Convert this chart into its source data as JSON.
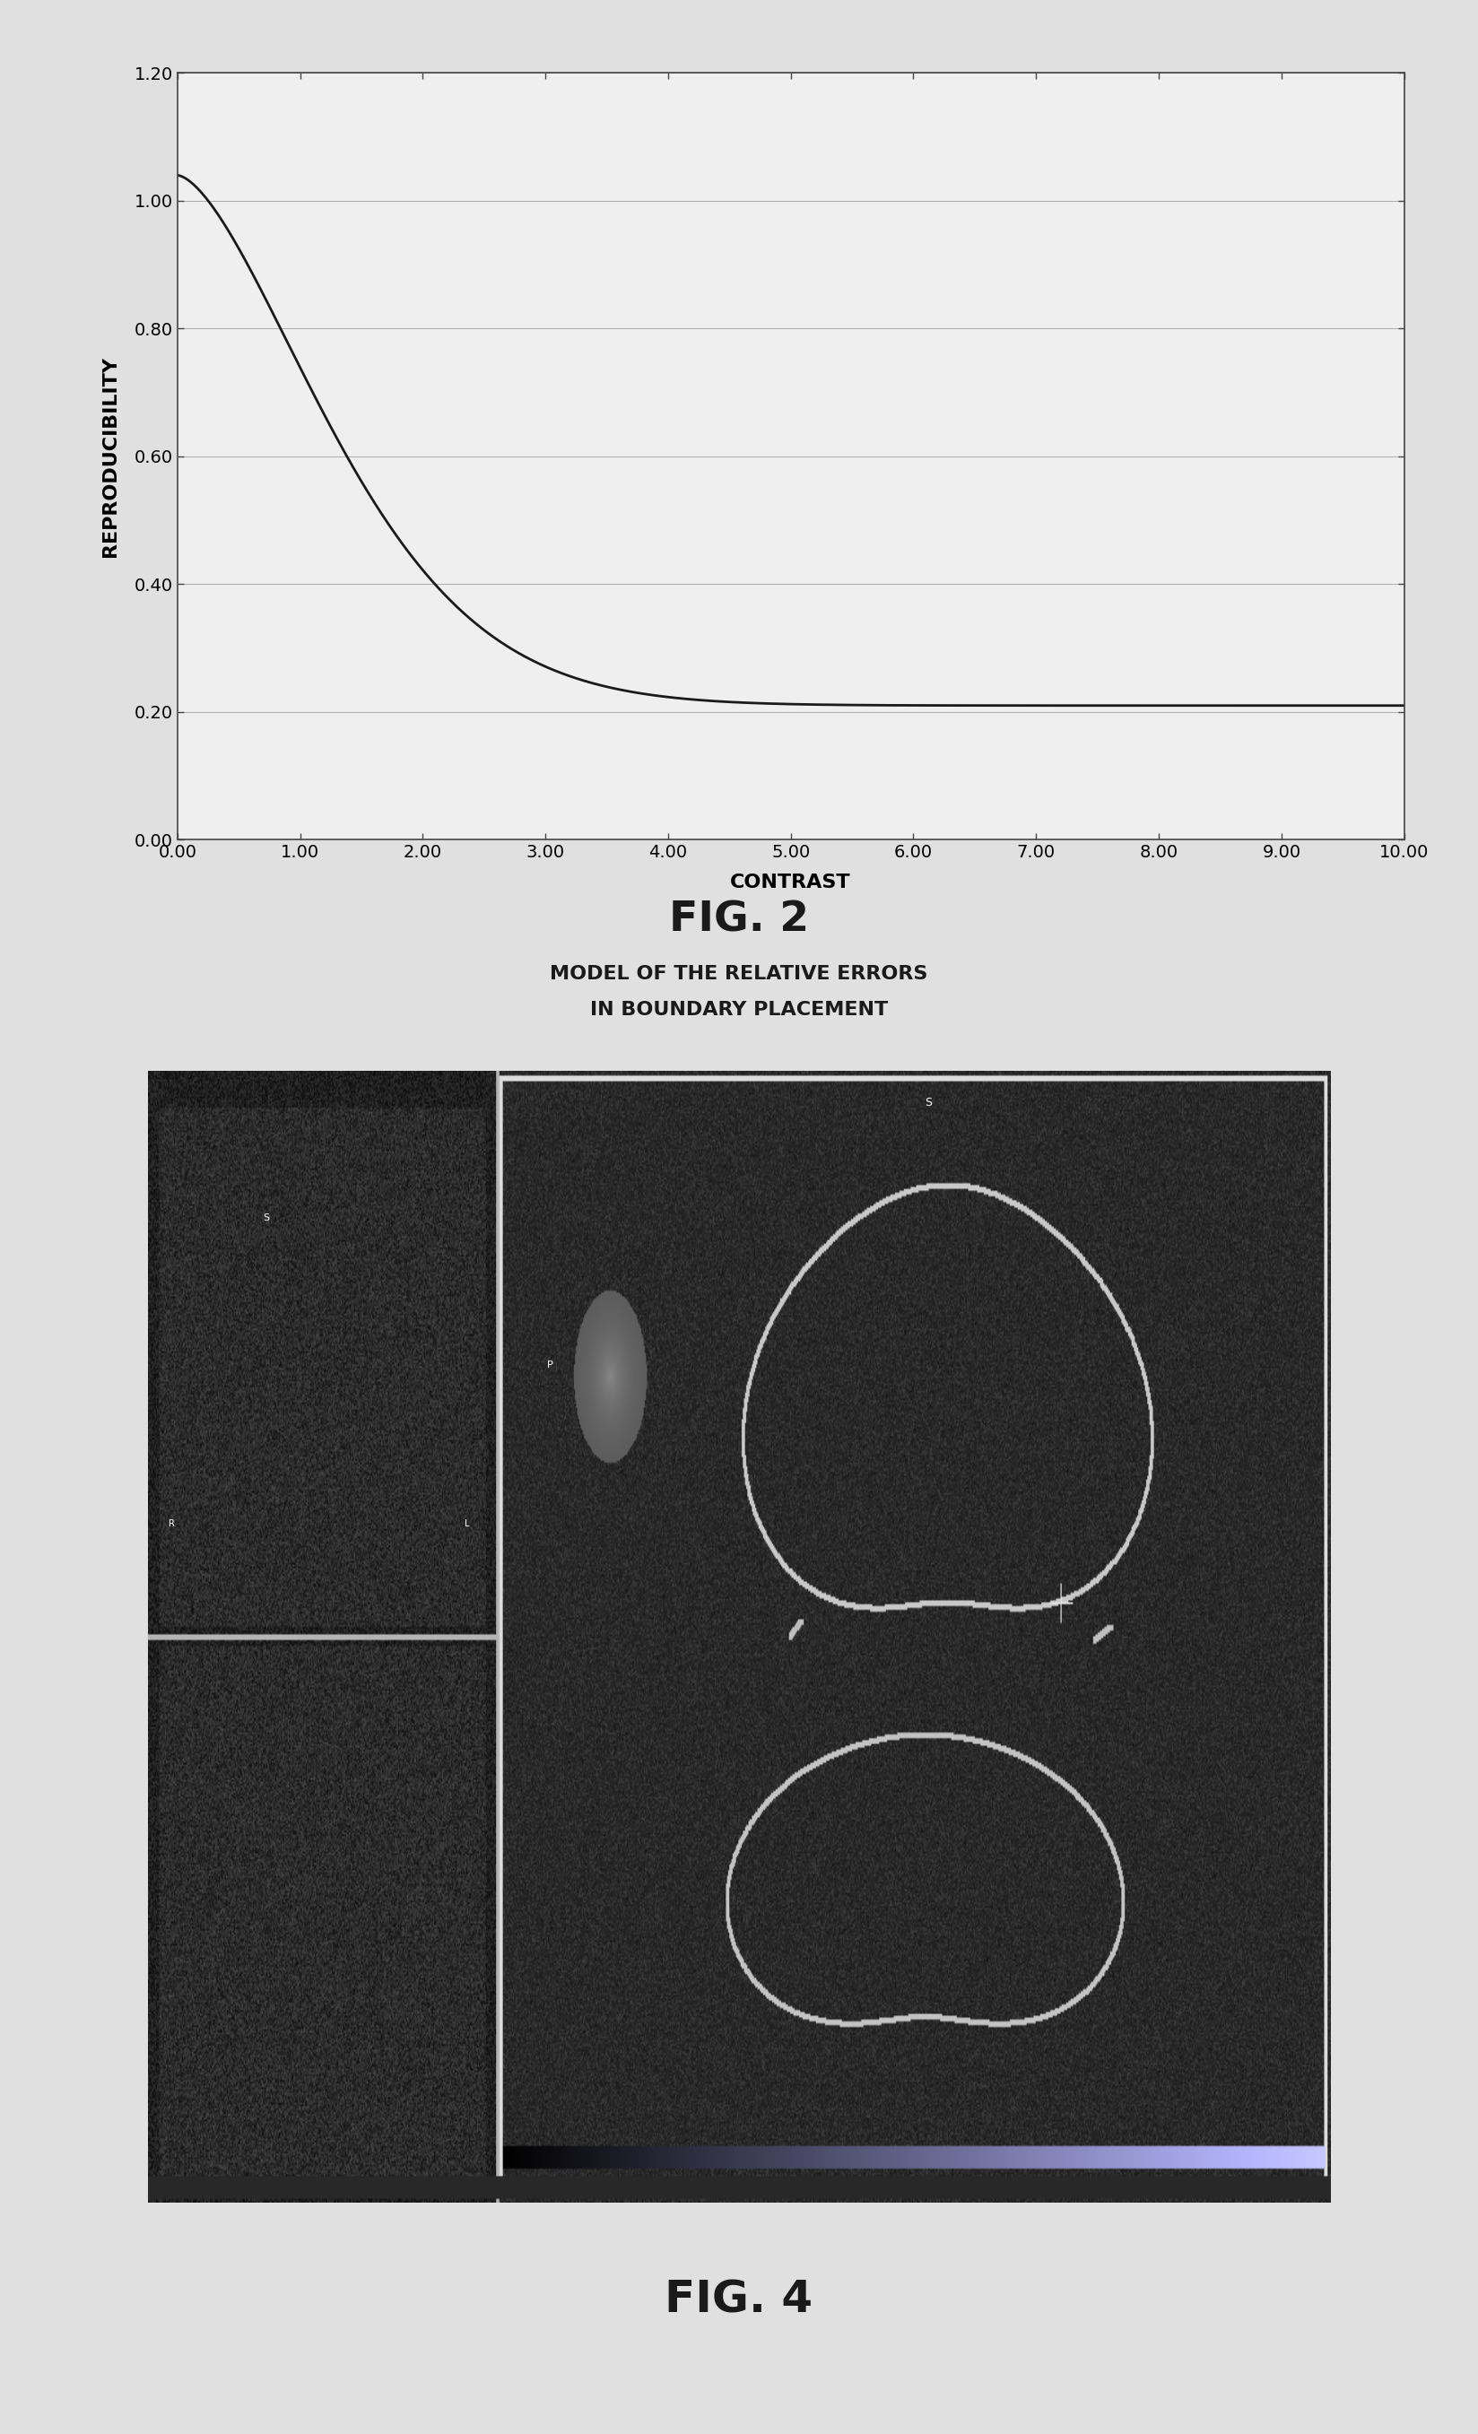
{
  "fig2": {
    "title": "FIG. 2",
    "subtitle_line1": "MODEL OF THE RELATIVE ERRORS",
    "subtitle_line2": "IN BOUNDARY PLACEMENT",
    "xlabel": "CONTRAST",
    "ylabel": "REPRODUCIBILITY",
    "xlim": [
      0.0,
      10.0
    ],
    "ylim": [
      0.0,
      1.2
    ],
    "xticks": [
      0.0,
      1.0,
      2.0,
      3.0,
      4.0,
      5.0,
      6.0,
      7.0,
      8.0,
      9.0,
      10.0
    ],
    "yticks": [
      0.0,
      0.2,
      0.4,
      0.6,
      0.8,
      1.0,
      1.2
    ],
    "xtick_labels": [
      "0.00",
      "1.00",
      "2.00",
      "3.00",
      "4.00",
      "5.00",
      "6.00",
      "7.00",
      "8.00",
      "9.00",
      "10.00"
    ],
    "ytick_labels": [
      "0.00",
      "0.20",
      "0.40",
      "0.60",
      "0.80",
      "1.00",
      "1.20"
    ],
    "line_color": "#1a1a1a",
    "line_width": 2.0,
    "background_color": "#efefef",
    "grid_color": "#aaaaaa",
    "grid_linewidth": 0.7
  },
  "fig4": {
    "title": "FIG. 4",
    "title_fontsize": 36
  },
  "page_background": "#e0e0e0",
  "caption_fontsize_title": 34,
  "caption_fontsize_sub": 16
}
